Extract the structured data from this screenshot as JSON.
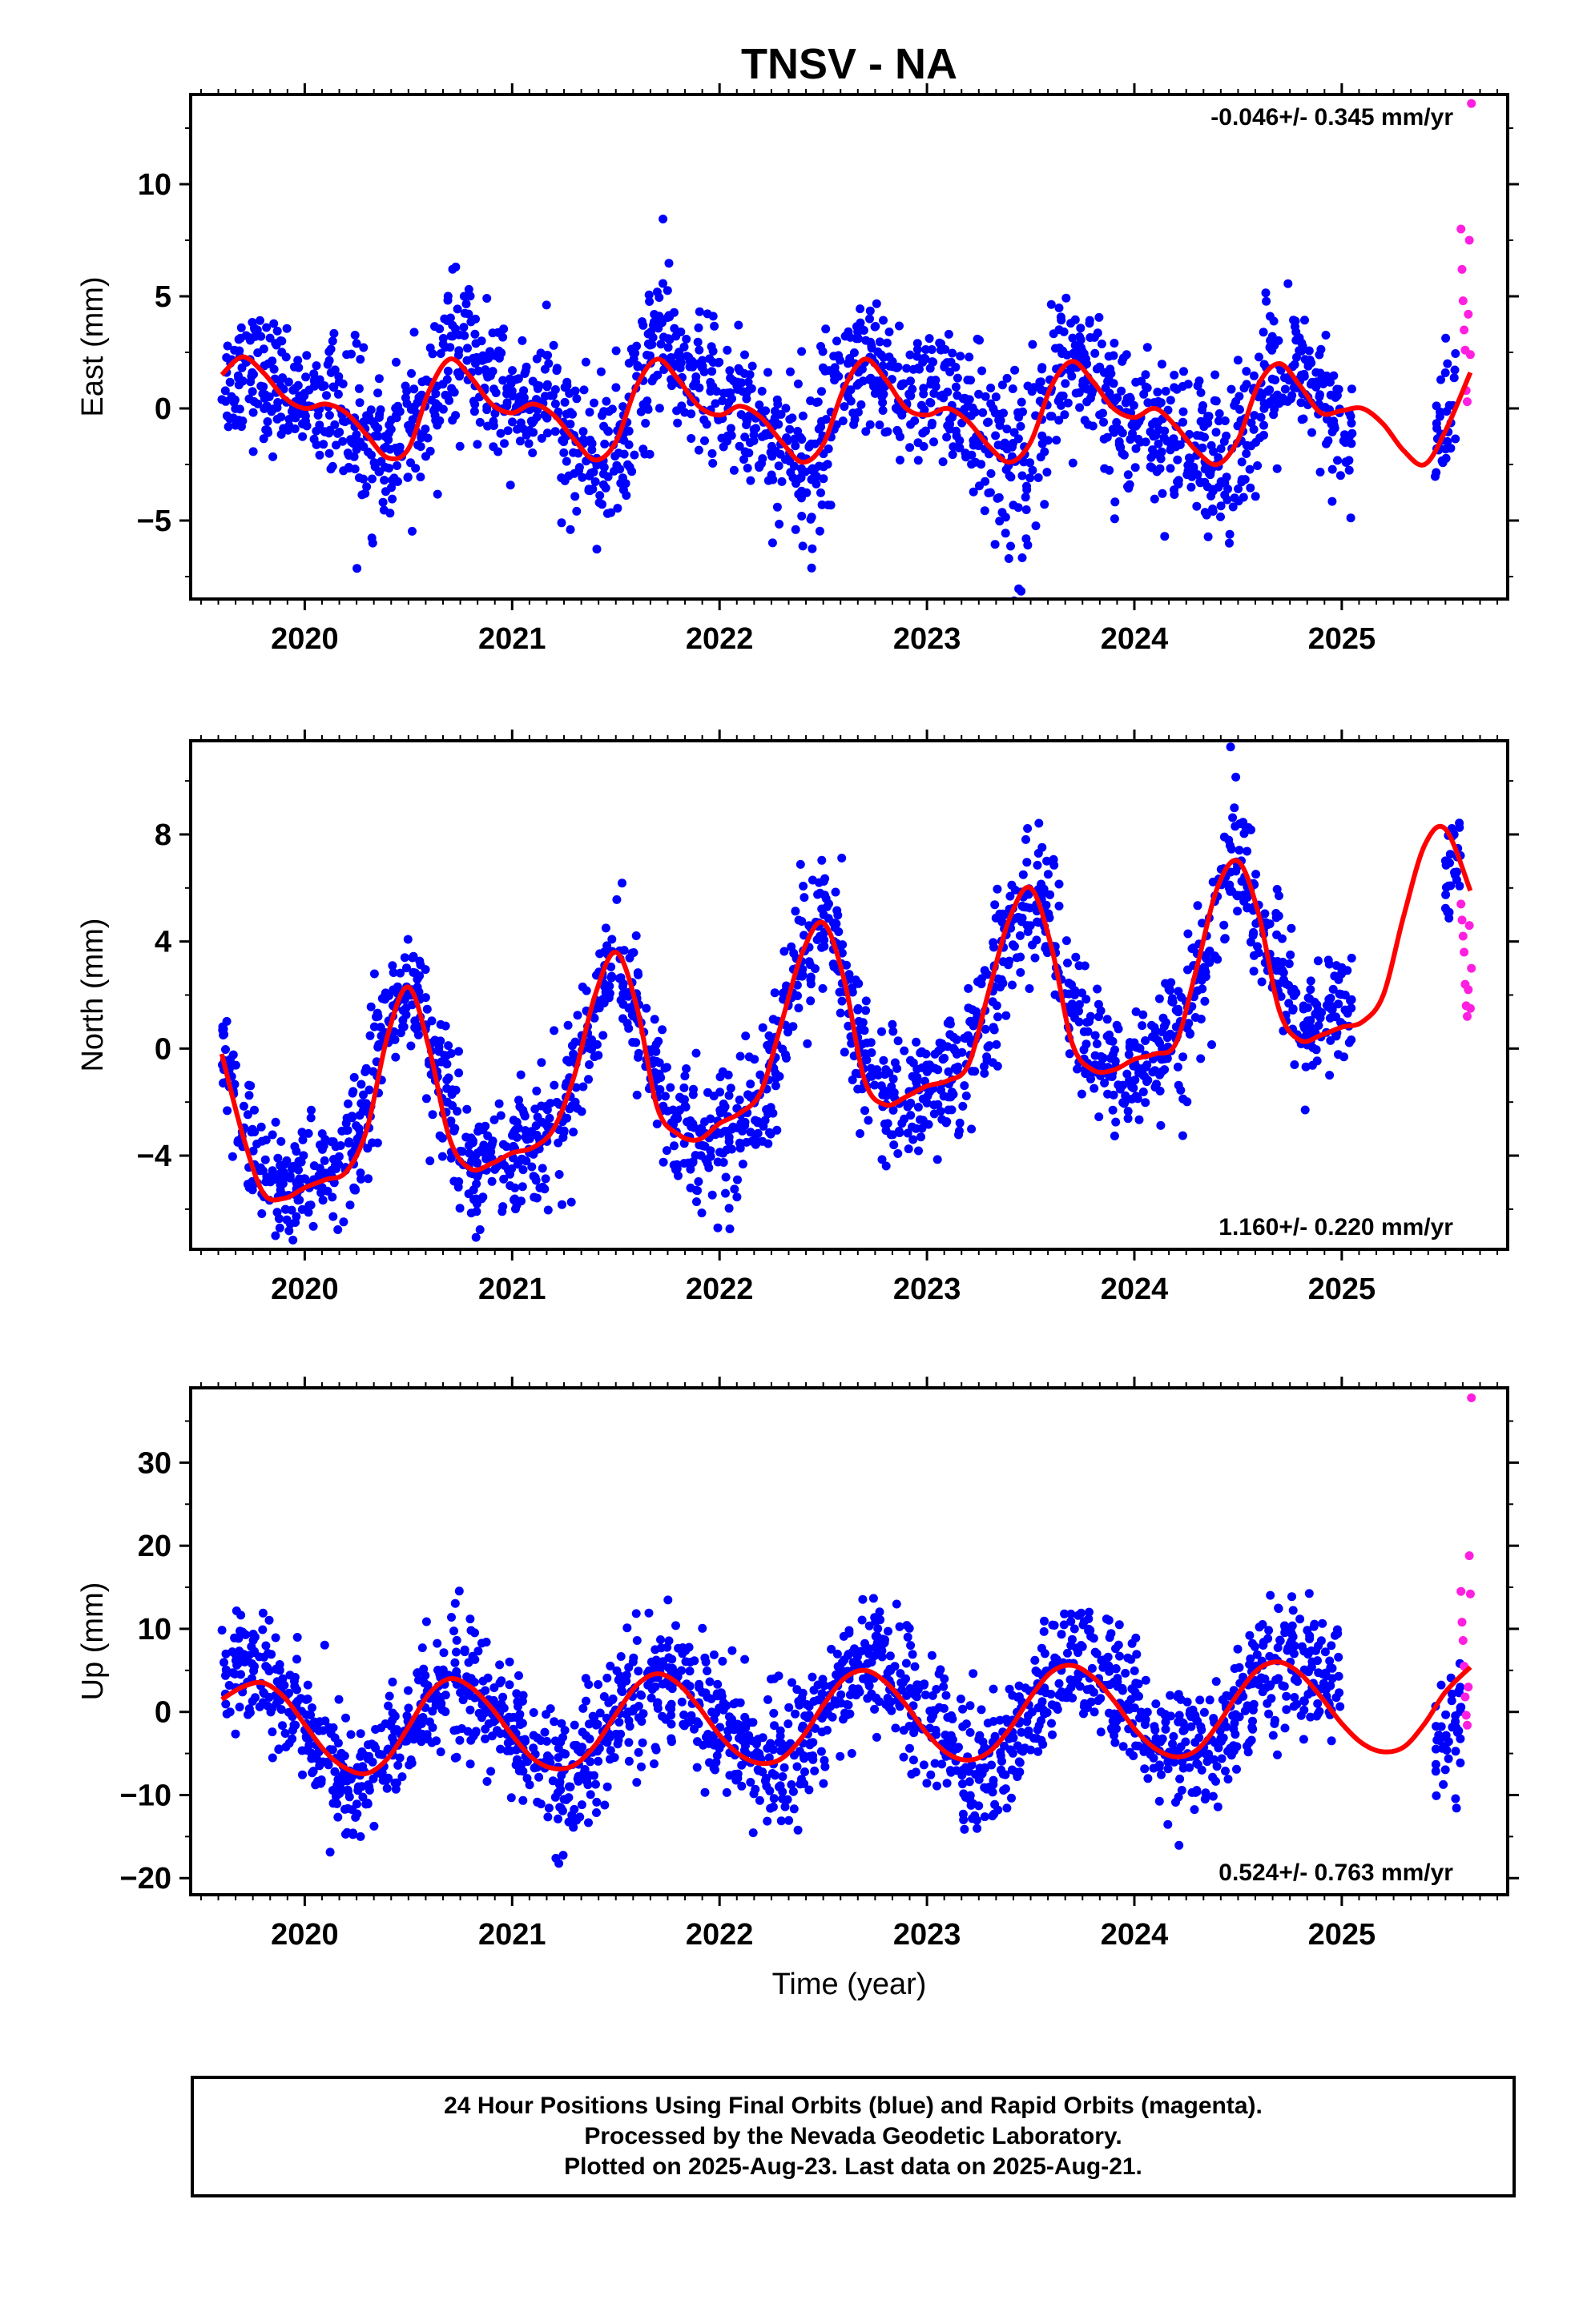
{
  "title": "TNSV - NA",
  "xlabel": "Time (year)",
  "colors": {
    "final": "#0000ff",
    "rapid": "#ff1fe0",
    "fit": "#ff0000",
    "frame": "#000000"
  },
  "caption": {
    "line1": "24 Hour Positions Using Final Orbits (blue) and Rapid Orbits (magenta).",
    "line2": "Processed by the Nevada Geodetic Laboratory.",
    "line3": "Plotted on 2025-Aug-23. Last data on 2025-Aug-21."
  },
  "chart_data": [
    {
      "type": "scatter",
      "component": "East",
      "ylabel": "East (mm)",
      "rate_label": "-0.046+/- 0.345 mm/yr",
      "rate_position": "top-right",
      "xlim": [
        2019.45,
        2025.8
      ],
      "ylim": [
        -8.5,
        14
      ],
      "x_ticks": [
        2020,
        2021,
        2022,
        2023,
        2024,
        2025
      ],
      "y_ticks": [
        -5,
        0,
        5,
        10
      ],
      "trend": -0.046,
      "fit_curve": {
        "x": [
          2019.6,
          2019.7,
          2019.8,
          2019.9,
          2020.0,
          2020.1,
          2020.2,
          2020.3,
          2020.4,
          2020.5,
          2020.6,
          2020.7,
          2020.8,
          2020.9,
          2021.0,
          2021.1,
          2021.2,
          2021.3,
          2021.4,
          2021.5,
          2021.6,
          2021.7,
          2021.8,
          2021.9,
          2022.0,
          2022.1,
          2022.2,
          2022.3,
          2022.4,
          2022.5,
          2022.6,
          2022.7,
          2022.8,
          2022.9,
          2023.0,
          2023.1,
          2023.2,
          2023.3,
          2023.4,
          2023.5,
          2023.6,
          2023.7,
          2023.8,
          2023.9,
          2024.0,
          2024.1,
          2024.2,
          2024.3,
          2024.4,
          2024.5,
          2024.6,
          2024.7,
          2024.8,
          2024.9,
          2025.0,
          2025.1,
          2025.2,
          2025.3,
          2025.4,
          2025.5,
          2025.62
        ],
        "y": [
          1.5,
          2.3,
          1.6,
          0.5,
          0.0,
          0.2,
          -0.2,
          -1.2,
          -2.2,
          -1.8,
          0.8,
          2.2,
          1.4,
          0.2,
          -0.2,
          0.2,
          -0.3,
          -1.4,
          -2.3,
          -1.5,
          1.0,
          2.2,
          1.3,
          0.1,
          -0.3,
          0.1,
          -0.4,
          -1.5,
          -2.4,
          -1.6,
          0.9,
          2.2,
          1.3,
          0.0,
          -0.3,
          0.0,
          -0.6,
          -1.7,
          -2.4,
          -1.5,
          1.0,
          2.1,
          1.2,
          0.0,
          -0.4,
          0.0,
          -0.8,
          -1.9,
          -2.5,
          -1.4,
          1.1,
          2.0,
          1.0,
          -0.2,
          -0.1,
          0.0,
          -0.7,
          -1.9,
          -2.5,
          -1.0,
          1.6
        ]
      },
      "scatter_band": [
        [
          2019.6,
          0.8,
          1.6
        ],
        [
          2019.7,
          1.8,
          1.7
        ],
        [
          2019.85,
          0.9,
          1.6
        ],
        [
          2020.0,
          0.4,
          1.5
        ],
        [
          2020.15,
          0.6,
          1.7
        ],
        [
          2020.25,
          -1.5,
          1.9
        ],
        [
          2020.4,
          -2.0,
          2.0
        ],
        [
          2020.55,
          -1.2,
          2.0
        ],
        [
          2020.7,
          2.6,
          2.0
        ],
        [
          2020.85,
          1.6,
          1.8
        ],
        [
          2021.0,
          0.0,
          1.6
        ],
        [
          2021.15,
          0.3,
          1.7
        ],
        [
          2021.3,
          -1.4,
          1.9
        ],
        [
          2021.45,
          -2.6,
          2.0
        ],
        [
          2021.55,
          -0.8,
          2.0
        ],
        [
          2021.7,
          3.2,
          2.1
        ],
        [
          2021.85,
          1.6,
          1.9
        ],
        [
          2022.0,
          0.4,
          1.7
        ],
        [
          2022.15,
          -0.2,
          1.7
        ],
        [
          2022.3,
          -1.6,
          2.1
        ],
        [
          2022.45,
          -2.8,
          2.6
        ],
        [
          2022.55,
          0.8,
          2.0
        ],
        [
          2022.7,
          1.8,
          1.8
        ],
        [
          2022.85,
          0.6,
          1.7
        ],
        [
          2023.0,
          0.6,
          1.7
        ],
        [
          2023.15,
          0.2,
          1.9
        ],
        [
          2023.3,
          -1.8,
          2.3
        ],
        [
          2023.45,
          -3.2,
          2.6
        ],
        [
          2023.6,
          1.0,
          2.0
        ],
        [
          2023.75,
          1.8,
          1.7
        ],
        [
          2023.9,
          0.2,
          1.8
        ],
        [
          2024.05,
          -0.8,
          1.8
        ],
        [
          2024.2,
          -1.2,
          1.9
        ],
        [
          2024.35,
          -2.6,
          2.3
        ],
        [
          2024.5,
          -1.4,
          2.1
        ],
        [
          2024.65,
          1.2,
          1.9
        ],
        [
          2024.8,
          1.4,
          1.8
        ],
        [
          2024.95,
          -0.4,
          1.8
        ],
        [
          2025.05,
          -1.8,
          1.6
        ],
        [
          2025.45,
          -1.5,
          1.5
        ],
        [
          2025.55,
          0.5,
          1.9
        ]
      ],
      "rapid_points": {
        "x": [
          2025.575,
          2025.58,
          2025.585,
          2025.59,
          2025.595,
          2025.6,
          2025.605,
          2025.61,
          2025.615,
          2025.62,
          2025.625
        ],
        "y": [
          8.0,
          6.2,
          4.8,
          3.5,
          2.6,
          0.8,
          0.3,
          4.2,
          7.5,
          2.4,
          13.6
        ]
      }
    },
    {
      "type": "scatter",
      "component": "North",
      "ylabel": "North (mm)",
      "rate_label": "1.160+/- 0.220 mm/yr",
      "rate_position": "bottom-right",
      "xlim": [
        2019.45,
        2025.8
      ],
      "ylim": [
        -7.5,
        11.5
      ],
      "x_ticks": [
        2020,
        2021,
        2022,
        2023,
        2024,
        2025
      ],
      "y_ticks": [
        -4,
        0,
        4,
        8
      ],
      "trend": 1.16,
      "fit_curve": {
        "x": [
          2019.6,
          2019.7,
          2019.8,
          2019.9,
          2020.0,
          2020.1,
          2020.2,
          2020.3,
          2020.4,
          2020.5,
          2020.6,
          2020.7,
          2020.8,
          2020.9,
          2021.0,
          2021.1,
          2021.2,
          2021.3,
          2021.4,
          2021.5,
          2021.6,
          2021.7,
          2021.8,
          2021.9,
          2022.0,
          2022.1,
          2022.2,
          2022.3,
          2022.4,
          2022.5,
          2022.6,
          2022.7,
          2022.8,
          2022.9,
          2023.0,
          2023.1,
          2023.2,
          2023.3,
          2023.4,
          2023.5,
          2023.6,
          2023.7,
          2023.8,
          2023.9,
          2024.0,
          2024.1,
          2024.2,
          2024.3,
          2024.4,
          2024.5,
          2024.6,
          2024.7,
          2024.8,
          2024.9,
          2025.0,
          2025.1,
          2025.2,
          2025.3,
          2025.4,
          2025.5,
          2025.62
        ],
        "y": [
          -0.2,
          -3.2,
          -5.4,
          -5.6,
          -5.2,
          -4.9,
          -4.6,
          -3.0,
          0.5,
          2.3,
          0.0,
          -3.4,
          -4.5,
          -4.3,
          -3.9,
          -3.7,
          -3.0,
          -1.0,
          2.0,
          3.6,
          1.6,
          -2.2,
          -3.2,
          -3.4,
          -2.8,
          -2.4,
          -1.6,
          1.0,
          3.6,
          4.7,
          2.6,
          -1.2,
          -2.1,
          -1.8,
          -1.4,
          -1.2,
          -0.6,
          2.2,
          4.9,
          6.0,
          3.8,
          0.2,
          -0.8,
          -0.8,
          -0.4,
          -0.2,
          0.2,
          3.0,
          6.0,
          7.0,
          5.0,
          1.4,
          0.3,
          0.5,
          0.8,
          1.0,
          2.0,
          5.0,
          7.6,
          8.2,
          5.9
        ]
      },
      "scatter_band": [
        [
          2019.6,
          -0.2,
          1.4
        ],
        [
          2019.7,
          -2.8,
          1.4
        ],
        [
          2019.8,
          -5.0,
          1.3
        ],
        [
          2019.95,
          -5.2,
          1.3
        ],
        [
          2020.1,
          -4.8,
          1.3
        ],
        [
          2020.25,
          -4.0,
          1.4
        ],
        [
          2020.4,
          0.8,
          1.6
        ],
        [
          2020.5,
          2.8,
          1.5
        ],
        [
          2020.65,
          -1.2,
          1.5
        ],
        [
          2020.8,
          -4.2,
          1.3
        ],
        [
          2020.95,
          -4.0,
          1.3
        ],
        [
          2021.1,
          -3.6,
          1.3
        ],
        [
          2021.25,
          -2.4,
          1.5
        ],
        [
          2021.4,
          2.0,
          1.6
        ],
        [
          2021.5,
          3.6,
          1.4
        ],
        [
          2021.65,
          0.0,
          1.5
        ],
        [
          2021.8,
          -3.2,
          1.4
        ],
        [
          2021.95,
          -3.6,
          1.5
        ],
        [
          2022.1,
          -2.8,
          1.4
        ],
        [
          2022.25,
          -1.0,
          1.6
        ],
        [
          2022.4,
          3.6,
          1.6
        ],
        [
          2022.5,
          5.0,
          1.5
        ],
        [
          2022.65,
          0.6,
          1.6
        ],
        [
          2022.8,
          -1.8,
          1.4
        ],
        [
          2022.95,
          -1.8,
          1.4
        ],
        [
          2023.1,
          -1.0,
          1.5
        ],
        [
          2023.25,
          0.2,
          1.6
        ],
        [
          2023.4,
          4.2,
          1.6
        ],
        [
          2023.55,
          6.0,
          1.4
        ],
        [
          2023.7,
          1.4,
          1.6
        ],
        [
          2023.85,
          -0.8,
          1.3
        ],
        [
          2023.95,
          -1.2,
          1.4
        ],
        [
          2024.1,
          0.0,
          1.4
        ],
        [
          2024.25,
          1.0,
          1.6
        ],
        [
          2024.4,
          5.0,
          1.6
        ],
        [
          2024.5,
          7.4,
          1.4
        ],
        [
          2024.65,
          3.6,
          1.6
        ],
        [
          2024.8,
          0.8,
          1.2
        ],
        [
          2024.95,
          1.4,
          1.2
        ],
        [
          2025.05,
          1.8,
          1.1
        ],
        [
          2025.5,
          6.6,
          1.2
        ],
        [
          2025.58,
          7.2,
          1.2
        ]
      ],
      "rapid_points": {
        "x": [
          2025.575,
          2025.58,
          2025.585,
          2025.59,
          2025.595,
          2025.6,
          2025.605,
          2025.61,
          2025.615,
          2025.62,
          2025.625
        ],
        "y": [
          5.4,
          4.8,
          4.2,
          3.6,
          2.4,
          1.6,
          1.2,
          2.2,
          4.6,
          1.5,
          3.0
        ]
      }
    },
    {
      "type": "scatter",
      "component": "Up",
      "ylabel": "Up (mm)",
      "rate_label": "0.524+/- 0.763 mm/yr",
      "rate_position": "bottom-right",
      "xlim": [
        2019.45,
        2025.8
      ],
      "ylim": [
        -22,
        39
      ],
      "x_ticks": [
        2020,
        2021,
        2022,
        2023,
        2024,
        2025
      ],
      "y_ticks": [
        -20,
        -10,
        0,
        10,
        20,
        30
      ],
      "trend": 0.524,
      "fit_curve": {
        "x": [
          2019.6,
          2019.7,
          2019.8,
          2019.9,
          2020.0,
          2020.1,
          2020.2,
          2020.3,
          2020.4,
          2020.5,
          2020.6,
          2020.7,
          2020.8,
          2020.9,
          2021.0,
          2021.1,
          2021.2,
          2021.3,
          2021.4,
          2021.5,
          2021.6,
          2021.7,
          2021.8,
          2021.9,
          2022.0,
          2022.1,
          2022.2,
          2022.3,
          2022.4,
          2022.5,
          2022.6,
          2022.7,
          2022.8,
          2022.9,
          2023.0,
          2023.1,
          2023.2,
          2023.3,
          2023.4,
          2023.5,
          2023.6,
          2023.7,
          2023.8,
          2023.9,
          2024.0,
          2024.1,
          2024.2,
          2024.3,
          2024.4,
          2024.5,
          2024.6,
          2024.7,
          2024.8,
          2024.9,
          2025.0,
          2025.1,
          2025.2,
          2025.3,
          2025.4,
          2025.5,
          2025.62
        ],
        "y": [
          1.5,
          3.0,
          3.5,
          1.8,
          -1.5,
          -4.8,
          -6.8,
          -7.4,
          -5.6,
          -1.8,
          2.2,
          4.0,
          3.0,
          0.5,
          -2.8,
          -5.6,
          -6.8,
          -6.4,
          -4.0,
          -0.3,
          3.2,
          4.6,
          3.4,
          0.6,
          -2.8,
          -5.2,
          -6.2,
          -5.6,
          -3.0,
          0.8,
          4.0,
          5.0,
          3.6,
          0.8,
          -2.6,
          -5.0,
          -5.8,
          -4.8,
          -2.0,
          1.8,
          4.8,
          5.6,
          4.2,
          1.4,
          -2.0,
          -4.4,
          -5.4,
          -4.6,
          -1.6,
          2.2,
          5.2,
          6.0,
          4.6,
          1.8,
          -1.4,
          -3.8,
          -4.8,
          -4.2,
          -1.4,
          2.4,
          5.4
        ]
      },
      "scatter_band": [
        [
          2019.6,
          4.5,
          3.8
        ],
        [
          2019.75,
          6.0,
          4.0
        ],
        [
          2019.9,
          2.0,
          4.2
        ],
        [
          2020.05,
          -3.0,
          4.5
        ],
        [
          2020.2,
          -9.0,
          4.8
        ],
        [
          2020.35,
          -8.0,
          4.5
        ],
        [
          2020.5,
          -2.0,
          4.5
        ],
        [
          2020.65,
          3.5,
          4.8
        ],
        [
          2020.8,
          2.5,
          4.5
        ],
        [
          2020.95,
          -1.0,
          4.5
        ],
        [
          2021.1,
          -5.0,
          4.6
        ],
        [
          2021.25,
          -9.0,
          5.0
        ],
        [
          2021.4,
          -5.0,
          4.5
        ],
        [
          2021.55,
          1.0,
          4.5
        ],
        [
          2021.7,
          4.0,
          4.6
        ],
        [
          2021.85,
          3.0,
          4.5
        ],
        [
          2022.0,
          -1.0,
          4.5
        ],
        [
          2022.15,
          -5.0,
          4.5
        ],
        [
          2022.3,
          -6.5,
          4.6
        ],
        [
          2022.45,
          -2.5,
          4.5
        ],
        [
          2022.6,
          4.0,
          4.8
        ],
        [
          2022.75,
          7.0,
          4.5
        ],
        [
          2022.9,
          2.0,
          4.5
        ],
        [
          2023.05,
          -2.0,
          4.5
        ],
        [
          2023.2,
          -6.0,
          4.5
        ],
        [
          2023.35,
          -7.0,
          4.6
        ],
        [
          2023.5,
          0.0,
          4.6
        ],
        [
          2023.65,
          5.0,
          4.6
        ],
        [
          2023.8,
          6.0,
          4.4
        ],
        [
          2023.95,
          2.0,
          4.4
        ],
        [
          2024.1,
          -2.0,
          4.4
        ],
        [
          2024.25,
          -6.0,
          4.4
        ],
        [
          2024.4,
          -4.0,
          4.4
        ],
        [
          2024.55,
          2.0,
          4.4
        ],
        [
          2024.7,
          6.0,
          4.4
        ],
        [
          2024.85,
          6.0,
          4.4
        ],
        [
          2025.0,
          1.5,
          4.2
        ],
        [
          2025.45,
          -5.0,
          4.5
        ],
        [
          2025.58,
          -2.0,
          4.5
        ]
      ],
      "rapid_points": {
        "x": [
          2025.575,
          2025.58,
          2025.585,
          2025.59,
          2025.595,
          2025.6,
          2025.605,
          2025.61,
          2025.615,
          2025.62,
          2025.625
        ],
        "y": [
          14.5,
          10.8,
          8.6,
          5.5,
          1.8,
          -0.4,
          -1.6,
          3.0,
          18.8,
          14.2,
          37.8
        ]
      }
    }
  ]
}
